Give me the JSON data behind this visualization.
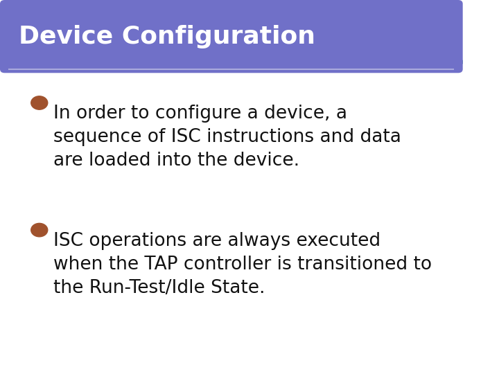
{
  "title": "Device Configuration",
  "title_bg_color": "#7070C8",
  "title_text_color": "#FFFFFF",
  "title_fontsize": 26,
  "title_font_weight": "bold",
  "body_bg_color": "#FFFFFF",
  "overall_bg_color": "#FFFFFF",
  "border_color": "#5F9EA0",
  "border_linewidth": 4,
  "bullet_color": "#A0522D",
  "bullet_points": [
    "In order to configure a device, a\nsequence of ISC instructions and data\nare loaded into the device.",
    "ISC operations are always executed\nwhen the TAP controller is transitioned to\nthe Run-Test/Idle State."
  ],
  "bullet_fontsize": 19,
  "bullet_text_color": "#111111",
  "sep_color": "#AAAADD",
  "figsize": [
    7.2,
    5.4
  ],
  "dpi": 100
}
